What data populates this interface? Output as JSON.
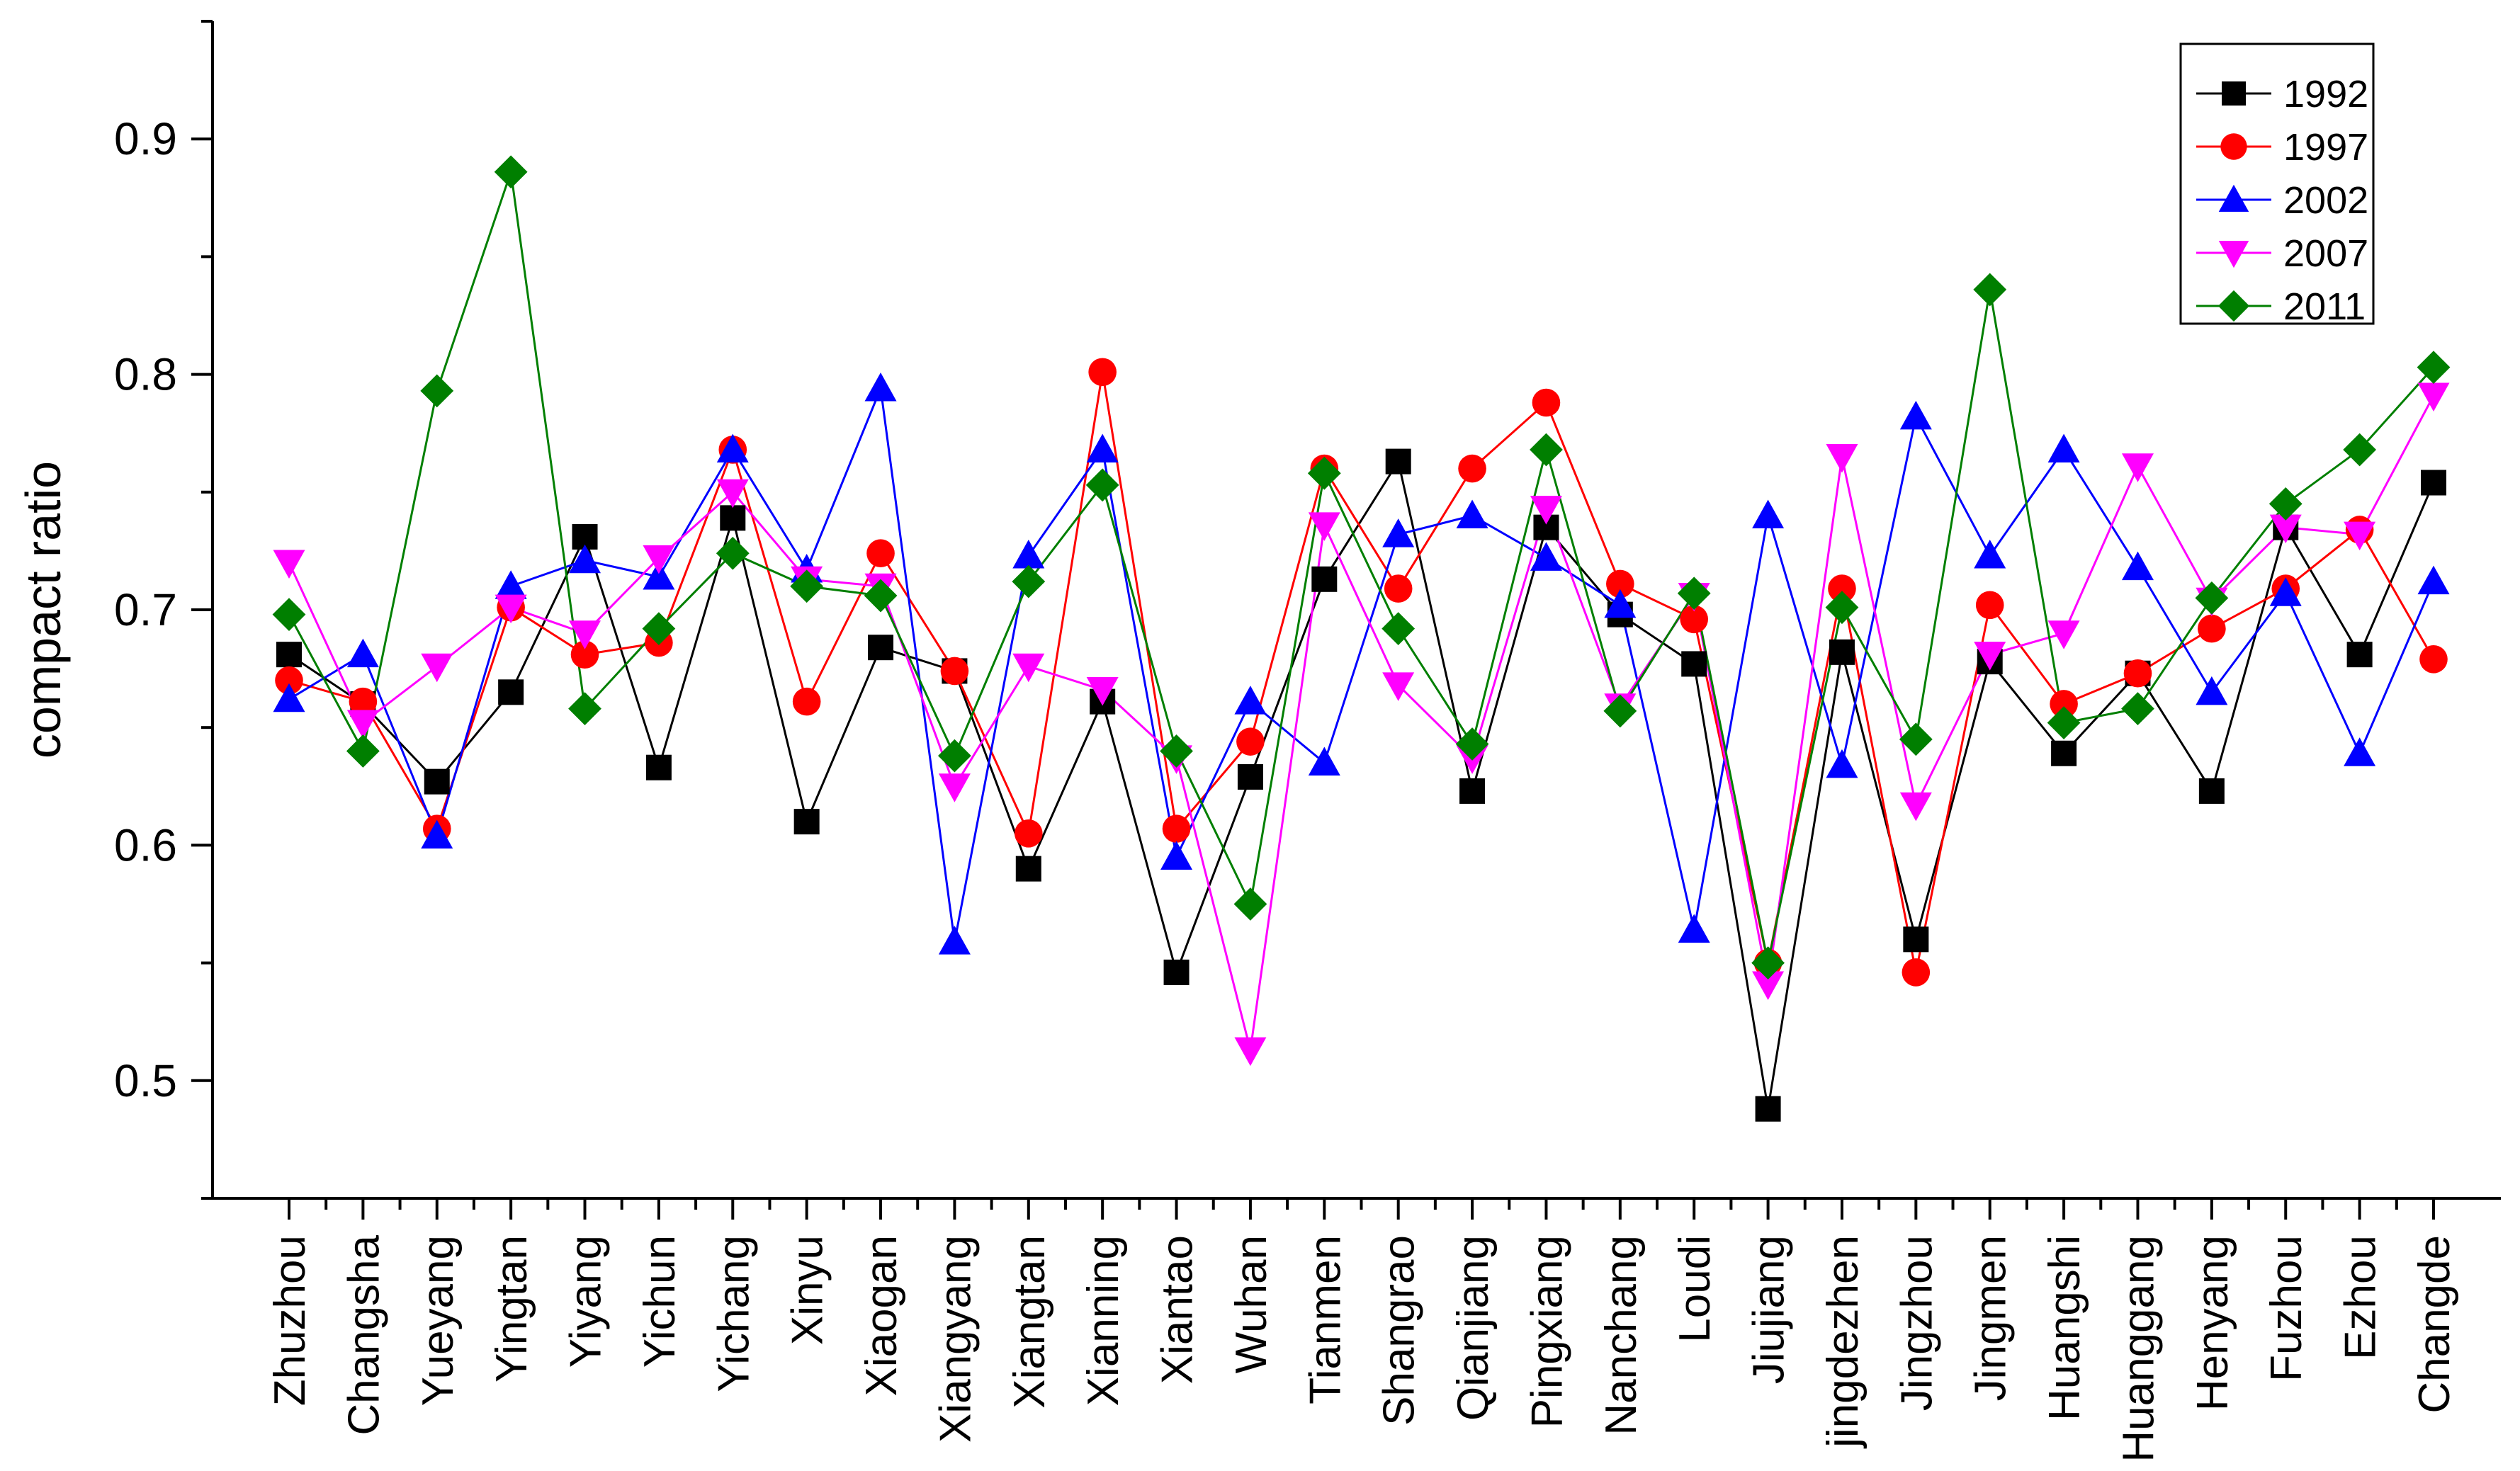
{
  "chart_data": {
    "type": "line",
    "title": "",
    "xlabel": "",
    "ylabel": "compact ratio",
    "ylim": [
      0.45,
      0.95
    ],
    "yticks": [
      0.5,
      0.6,
      0.7,
      0.8,
      0.9
    ],
    "ytick_labels": [
      "0.5",
      "0.6",
      "0.7",
      "0.8",
      "0.9"
    ],
    "grid": false,
    "legend_position": "top-right",
    "categories": [
      "Zhuzhou",
      "Changsha",
      "Yueyang",
      "Yingtan",
      "Yiyang",
      "Yichun",
      "Yichang",
      "Xinyu",
      "Xiaogan",
      "Xiangyang",
      "Xiangtan",
      "Xianning",
      "Xiantao",
      "Wuhan",
      "Tianmen",
      "Shangrao",
      "Qianjiang",
      "Pingxiang",
      "Nanchang",
      "Loudi",
      "Jiujiang",
      "jingdezhen",
      "Jingzhou",
      "Jingmen",
      "Huangshi",
      "Huanggang",
      "Henyang",
      "Fuzhou",
      "Ezhou",
      "Changde"
    ],
    "series": [
      {
        "name": "1992",
        "color": "#000000",
        "marker": "square",
        "values": [
          0.681,
          0.66,
          0.627,
          0.665,
          0.731,
          0.633,
          0.739,
          0.61,
          0.684,
          0.674,
          0.59,
          0.661,
          0.546,
          0.629,
          0.713,
          0.763,
          0.623,
          0.735,
          0.698,
          0.677,
          0.488,
          0.682,
          0.56,
          0.678,
          0.639,
          0.673,
          0.623,
          0.735,
          0.681,
          0.754
        ]
      },
      {
        "name": "1997",
        "color": "#ff0000",
        "marker": "circle",
        "values": [
          0.67,
          0.661,
          0.607,
          0.701,
          0.681,
          0.686,
          0.768,
          0.661,
          0.724,
          0.674,
          0.605,
          0.801,
          0.607,
          0.644,
          0.76,
          0.709,
          0.76,
          0.788,
          0.711,
          0.696,
          0.55,
          0.709,
          0.546,
          0.702,
          0.66,
          0.673,
          0.692,
          0.709,
          0.734,
          0.679
        ]
      },
      {
        "name": "2002",
        "color": "#0000ff",
        "marker": "triangle-up",
        "values": [
          0.662,
          0.681,
          0.604,
          0.71,
          0.721,
          0.714,
          0.768,
          0.717,
          0.794,
          0.559,
          0.723,
          0.768,
          0.595,
          0.661,
          0.635,
          0.732,
          0.74,
          0.722,
          0.702,
          0.564,
          0.74,
          0.634,
          0.782,
          0.723,
          0.768,
          0.718,
          0.665,
          0.707,
          0.639,
          0.712
        ]
      },
      {
        "name": "2007",
        "color": "#ff00ff",
        "marker": "triangle-down",
        "values": [
          0.72,
          0.652,
          0.676,
          0.701,
          0.69,
          0.722,
          0.75,
          0.713,
          0.71,
          0.625,
          0.676,
          0.666,
          0.637,
          0.513,
          0.736,
          0.668,
          0.637,
          0.743,
          0.659,
          0.706,
          0.541,
          0.765,
          0.617,
          0.681,
          0.69,
          0.761,
          0.704,
          0.735,
          0.732,
          0.791
        ]
      },
      {
        "name": "2011",
        "color": "#007f00",
        "marker": "diamond",
        "values": [
          0.698,
          0.64,
          0.793,
          0.886,
          0.658,
          0.692,
          0.724,
          0.71,
          0.706,
          0.638,
          0.712,
          0.753,
          0.64,
          0.575,
          0.758,
          0.692,
          0.643,
          0.768,
          0.657,
          0.707,
          0.55,
          0.701,
          0.645,
          0.836,
          0.652,
          0.658,
          0.705,
          0.745,
          0.768,
          0.803
        ]
      }
    ]
  }
}
